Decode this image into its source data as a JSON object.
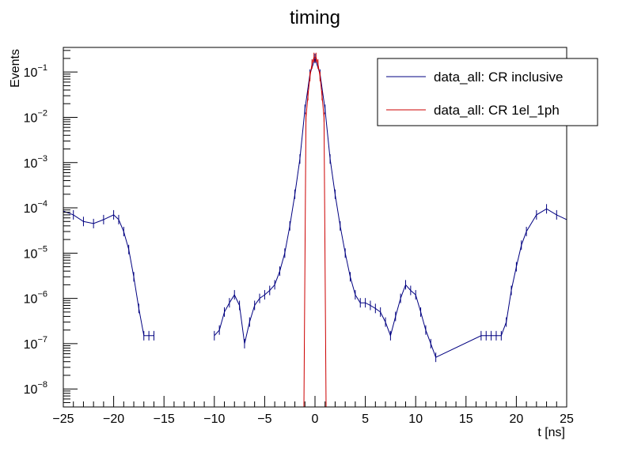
{
  "chart_data": {
    "type": "line",
    "title": "timing",
    "xlabel": "t [ns]",
    "ylabel": "Events",
    "xlim": [
      -25,
      25
    ],
    "ylim": [
      4e-09,
      0.35
    ],
    "yscale": "log",
    "x_ticks": [
      -25,
      -20,
      -15,
      -10,
      -5,
      0,
      5,
      10,
      15,
      20,
      25
    ],
    "x_tick_labels": [
      "−25",
      "−20",
      "−15",
      "−10",
      "−5",
      "0",
      "5",
      "10",
      "15",
      "20",
      "25"
    ],
    "y_ticks": [
      1e-08,
      1e-07,
      1e-06,
      1e-05,
      0.0001,
      0.001,
      0.01,
      0.1
    ],
    "y_tick_bases": [
      "10",
      "10",
      "10",
      "10",
      "10",
      "10",
      "10",
      "10"
    ],
    "y_tick_exponents": [
      "−8",
      "−7",
      "−6",
      "−5",
      "−4",
      "−3",
      "−2",
      "−1"
    ],
    "grid": false,
    "legend_position": "top-right",
    "colors": {
      "inclusive": "#000080",
      "el1ph": "#cc0000",
      "frame": "#000000"
    },
    "series": [
      {
        "name": "data_all: CR inclusive",
        "x": [
          -25,
          -24,
          -23,
          -22,
          -21,
          -20,
          -19.5,
          -19,
          -18.5,
          -18,
          -17.5,
          -17,
          -16.5,
          -16,
          -15,
          -10,
          -9.5,
          -9,
          -8.5,
          -8,
          -7.5,
          -7,
          -6.5,
          -6,
          -5.5,
          -5,
          -4.5,
          -4,
          -3.5,
          -3,
          -2.5,
          -2,
          -1.5,
          -1,
          -0.5,
          0,
          0.5,
          1,
          1.5,
          2,
          2.5,
          3,
          3.5,
          4,
          4.5,
          5,
          5.5,
          6,
          6.5,
          7,
          7.5,
          8,
          8.5,
          9,
          9.5,
          10,
          10.5,
          11,
          11.5,
          12,
          16.5,
          17,
          17.5,
          18,
          18.5,
          19,
          19.5,
          20,
          20.5,
          21,
          22,
          23,
          24,
          25
        ],
        "y": [
          8.5e-05,
          7e-05,
          5e-05,
          4.5e-05,
          5.5e-05,
          7e-05,
          5.5e-05,
          3e-05,
          1.2e-05,
          3e-06,
          6e-07,
          1.5e-07,
          1.5e-07,
          1.5e-07,
          null,
          1.5e-07,
          2e-07,
          5e-07,
          8e-07,
          1.2e-06,
          7e-07,
          1e-07,
          3e-07,
          7e-07,
          1e-06,
          1.2e-06,
          1.5e-06,
          2e-06,
          4e-06,
          1e-05,
          4e-05,
          0.0002,
          0.0012,
          0.015,
          0.09,
          0.2,
          0.09,
          0.015,
          0.0012,
          0.0002,
          4e-05,
          1e-05,
          3e-06,
          1.2e-06,
          8e-07,
          8e-07,
          7e-07,
          6e-07,
          5e-07,
          3e-07,
          1.5e-07,
          4e-07,
          1e-06,
          2e-06,
          1.5e-06,
          1.2e-06,
          5e-07,
          2e-07,
          1e-07,
          5e-08,
          1.5e-07,
          1.5e-07,
          1.5e-07,
          1.5e-07,
          1.5e-07,
          3e-07,
          1.5e-06,
          5e-06,
          1.5e-05,
          3e-05,
          7e-05,
          9.5e-05,
          7e-05,
          5.5e-05
        ]
      },
      {
        "name": "data_all: CR 1el_1ph",
        "x": [
          -1.1,
          -0.9,
          -0.7,
          -0.5,
          -0.3,
          -0.1,
          0.1,
          0.3,
          0.5,
          0.7,
          0.9,
          1.1
        ],
        "y": [
          4e-09,
          0.01,
          0.03,
          0.08,
          0.15,
          0.21,
          0.21,
          0.15,
          0.08,
          0.03,
          0.01,
          4e-09
        ]
      }
    ]
  }
}
